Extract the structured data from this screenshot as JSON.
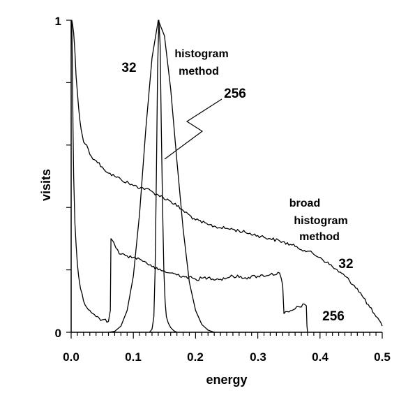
{
  "chart_data": {
    "type": "line",
    "xlabel": "energy",
    "ylabel": "visits",
    "xlim": [
      0.0,
      0.5
    ],
    "ylim": [
      0,
      1
    ],
    "x_ticks": [
      "0.0",
      "0.1",
      "0.2",
      "0.3",
      "0.4",
      "0.5"
    ],
    "y_ticks": [
      "0",
      "1"
    ],
    "grid": false,
    "series": [
      {
        "name": "histogram method 32",
        "x": [
          0.06,
          0.07,
          0.08,
          0.09,
          0.1,
          0.11,
          0.12,
          0.13,
          0.14,
          0.15,
          0.16,
          0.17,
          0.18,
          0.19,
          0.2,
          0.21,
          0.22,
          0.23
        ],
        "y": [
          0.0,
          0.003,
          0.02,
          0.07,
          0.18,
          0.38,
          0.65,
          0.88,
          1.0,
          0.95,
          0.78,
          0.55,
          0.33,
          0.16,
          0.07,
          0.025,
          0.007,
          0.0
        ]
      },
      {
        "name": "histogram method 256",
        "x": [
          0.126,
          0.13,
          0.133,
          0.135,
          0.137,
          0.139,
          0.141,
          0.143,
          0.145,
          0.147,
          0.149,
          0.151,
          0.153,
          0.156,
          0.16,
          0.165,
          0.17
        ],
        "y": [
          0.0,
          0.01,
          0.05,
          0.2,
          0.5,
          0.85,
          1.0,
          0.92,
          0.65,
          0.4,
          0.2,
          0.1,
          0.05,
          0.03,
          0.015,
          0.005,
          0.0
        ]
      },
      {
        "name": "broad histogram method 32",
        "x": [
          0.0,
          0.001,
          0.002,
          0.004,
          0.006,
          0.008,
          0.01,
          0.012,
          0.014,
          0.016,
          0.018,
          0.02,
          0.025,
          0.03,
          0.04,
          0.05,
          0.06,
          0.07,
          0.08,
          0.1,
          0.12,
          0.14,
          0.16,
          0.18,
          0.2,
          0.22,
          0.24,
          0.26,
          0.28,
          0.3,
          0.32,
          0.34,
          0.36,
          0.38,
          0.4,
          0.42,
          0.44,
          0.46,
          0.48,
          0.49,
          0.5
        ],
        "y": [
          0.96,
          1.0,
          0.99,
          0.96,
          0.9,
          0.82,
          0.77,
          0.72,
          0.68,
          0.65,
          0.63,
          0.61,
          0.6,
          0.57,
          0.55,
          0.53,
          0.51,
          0.5,
          0.49,
          0.47,
          0.46,
          0.44,
          0.42,
          0.39,
          0.36,
          0.345,
          0.335,
          0.33,
          0.32,
          0.31,
          0.3,
          0.29,
          0.275,
          0.26,
          0.24,
          0.21,
          0.18,
          0.14,
          0.08,
          0.05,
          0.02
        ]
      },
      {
        "name": "broad histogram method 256",
        "x": [
          0.0,
          0.001,
          0.002,
          0.003,
          0.004,
          0.006,
          0.008,
          0.01,
          0.012,
          0.015,
          0.02,
          0.025,
          0.03,
          0.035,
          0.04,
          0.05,
          0.06,
          0.063,
          0.064,
          0.068,
          0.072,
          0.08,
          0.09,
          0.1,
          0.11,
          0.12,
          0.13,
          0.14,
          0.16,
          0.18,
          0.2,
          0.22,
          0.24,
          0.26,
          0.28,
          0.3,
          0.32,
          0.335,
          0.34,
          0.342,
          0.35,
          0.36,
          0.375,
          0.378,
          0.379,
          0.38
        ],
        "y": [
          0.98,
          1.0,
          0.85,
          0.65,
          0.5,
          0.35,
          0.28,
          0.22,
          0.18,
          0.14,
          0.1,
          0.08,
          0.07,
          0.06,
          0.05,
          0.04,
          0.035,
          0.07,
          0.3,
          0.29,
          0.27,
          0.25,
          0.245,
          0.24,
          0.235,
          0.225,
          0.21,
          0.2,
          0.19,
          0.18,
          0.17,
          0.175,
          0.17,
          0.18,
          0.175,
          0.18,
          0.185,
          0.19,
          0.15,
          0.06,
          0.065,
          0.075,
          0.09,
          0.085,
          0.02,
          0.0
        ]
      }
    ],
    "annotations": {
      "hist_label_line1": "histogram",
      "hist_label_line2": "method",
      "broad_label_line1": "broad",
      "broad_label_line2": "histogram",
      "broad_label_line3": "method",
      "hist32": "32",
      "hist256": "256",
      "broad32": "32",
      "broad256": "256"
    }
  }
}
